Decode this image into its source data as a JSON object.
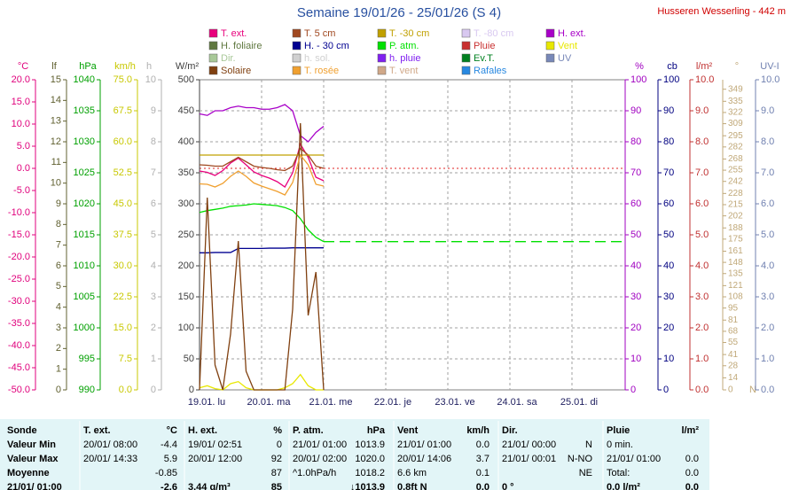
{
  "chart_data": {
    "type": "line",
    "title": "Semaine 19/01/26 - 25/01/26 (S 4)",
    "subtitle": "Husseren Wesserling - 442 m",
    "categories": [
      "19.01. lu",
      null,
      null,
      null,
      null,
      null,
      null,
      null,
      "20.01. ma",
      null,
      null,
      null,
      null,
      null,
      null,
      null,
      "21.01. me",
      null,
      null,
      null,
      null,
      null,
      null,
      null,
      "22.01. je",
      null,
      null,
      null,
      null,
      null,
      null,
      null,
      "23.01. ve",
      null,
      null,
      null,
      null,
      null,
      null,
      null,
      "24.01. sa",
      null,
      null,
      null,
      null,
      null,
      null,
      null,
      "25.01. di",
      null,
      null,
      null,
      null,
      null,
      null,
      null
    ],
    "axes": [
      {
        "label": "°C",
        "side": "left",
        "color": "#e0007c",
        "lim": [
          -50,
          20
        ],
        "zero_line": true,
        "ticks": [
          {
            "value": 20,
            "label": "20.0"
          },
          {
            "value": 15,
            "label": "15.0"
          },
          {
            "value": 10,
            "label": "10.0"
          },
          {
            "value": 5,
            "label": "5.0"
          },
          {
            "value": 0,
            "label": "0.0"
          },
          {
            "value": -5,
            "label": "-5.0"
          },
          {
            "value": -10,
            "label": "-10.0"
          },
          {
            "value": -15,
            "label": "-15.0"
          },
          {
            "value": -20,
            "label": "-20.0"
          },
          {
            "value": -25,
            "label": "-25.0"
          },
          {
            "value": -30,
            "label": "-30.0"
          },
          {
            "value": -35,
            "label": "-35.0"
          },
          {
            "value": -40,
            "label": "-40.0"
          },
          {
            "value": -45,
            "label": "-45.0"
          },
          {
            "value": -50,
            "label": "-50.0"
          }
        ]
      },
      {
        "label": "lf",
        "side": "left",
        "color": "#606030",
        "lim": [
          0,
          15
        ],
        "ticks": [
          15,
          14,
          13,
          12,
          11,
          10,
          9,
          8,
          7,
          6,
          5,
          4,
          3,
          2,
          1,
          0
        ]
      },
      {
        "label": "hPa",
        "side": "left",
        "color": "#00a000",
        "lim": [
          990,
          1040
        ],
        "ticks": [
          1040,
          1035,
          1030,
          1025,
          1020,
          1015,
          1010,
          1005,
          1000,
          995,
          990
        ]
      },
      {
        "label": "km/h",
        "side": "left",
        "color": "#c8c800",
        "lim": [
          0,
          75
        ],
        "ticks": [
          {
            "value": 75,
            "label": "75.0"
          },
          {
            "value": 67.5,
            "label": "67.5"
          },
          {
            "value": 60,
            "label": "60.0"
          },
          {
            "value": 52.5,
            "label": "52.5"
          },
          {
            "value": 45,
            "label": "45.0"
          },
          {
            "value": 37.5,
            "label": "37.5"
          },
          {
            "value": 30,
            "label": "30.0"
          },
          {
            "value": 22.5,
            "label": "22.5"
          },
          {
            "value": 15,
            "label": "15.0"
          },
          {
            "value": 7.5,
            "label": "7.5"
          },
          {
            "value": 0,
            "label": "0.0"
          }
        ]
      },
      {
        "label": "h",
        "side": "left",
        "color": "#b0b0b0",
        "lim": [
          0,
          10
        ],
        "ticks": [
          10,
          9,
          8,
          7,
          6,
          5,
          4,
          3,
          2,
          1,
          0
        ]
      },
      {
        "label": "W/m²",
        "side": "left",
        "color": "#404040",
        "lim": [
          0,
          500
        ],
        "grid": true,
        "ticks": [
          500,
          450,
          400,
          350,
          300,
          250,
          200,
          150,
          100,
          50,
          0
        ]
      },
      {
        "label": "%",
        "side": "right",
        "color": "#a000c0",
        "lim": [
          0,
          100
        ],
        "ticks": [
          100,
          90,
          80,
          70,
          60,
          50,
          40,
          30,
          20,
          10,
          0
        ]
      },
      {
        "label": "cb",
        "side": "right",
        "color": "#000080",
        "lim": [
          0,
          100
        ],
        "ticks": [
          100,
          90,
          80,
          70,
          60,
          50,
          40,
          30,
          20,
          10,
          0
        ]
      },
      {
        "label": "l/m²",
        "side": "right",
        "color": "#c03030",
        "lim": [
          0,
          10
        ],
        "ticks": [
          {
            "value": 10,
            "label": "10.0"
          },
          {
            "value": 9,
            "label": "9.0"
          },
          {
            "value": 8,
            "label": "8.0"
          },
          {
            "value": 7,
            "label": "7.0"
          },
          {
            "value": 6,
            "label": "6.0"
          },
          {
            "value": 5,
            "label": "5.0"
          },
          {
            "value": 4,
            "label": "4.0"
          },
          {
            "value": 3,
            "label": "3.0"
          },
          {
            "value": 2,
            "label": "2.0"
          },
          {
            "value": 1,
            "label": "1.0"
          },
          {
            "value": 0,
            "label": "0.0"
          }
        ]
      },
      {
        "label": "°",
        "side": "right",
        "color": "#c0a878",
        "lim": [
          0,
          360
        ],
        "zero_label": "N",
        "ticks": [
          349,
          335,
          322,
          309,
          295,
          282,
          268,
          255,
          242,
          228,
          215,
          202,
          188,
          175,
          161,
          148,
          135,
          121,
          108,
          95,
          81,
          68,
          55,
          41,
          28,
          14,
          0
        ]
      },
      {
        "label": "UV-I",
        "side": "right",
        "color": "#7080b0",
        "lim": [
          0,
          10
        ],
        "ticks": [
          {
            "value": 10,
            "label": "10.0"
          },
          {
            "value": 9,
            "label": "9.0"
          },
          {
            "value": 8,
            "label": "8.0"
          },
          {
            "value": 7,
            "label": "7.0"
          },
          {
            "value": 6,
            "label": "6.0"
          },
          {
            "value": 5,
            "label": "5.0"
          },
          {
            "value": 4,
            "label": "4.0"
          },
          {
            "value": 3,
            "label": "3.0"
          },
          {
            "value": 2,
            "label": "2.0"
          },
          {
            "value": 1,
            "label": "1.0"
          },
          {
            "value": 0,
            "label": "0.0"
          }
        ]
      }
    ],
    "series": [
      {
        "name": "T. ext.",
        "color": "#e8007c",
        "axis": 0,
        "values": [
          -0.6,
          -0.9,
          -1.6,
          -0.5,
          1.2,
          2.3,
          0.8,
          -0.8,
          -1.6,
          -2.2,
          -3.0,
          -4.2,
          -1.0,
          5.5,
          2.5,
          -2.0,
          -2.8,
          null,
          null,
          null,
          null,
          null,
          null,
          null,
          null,
          null,
          null,
          null,
          null,
          null,
          null,
          null,
          null,
          null,
          null,
          null,
          null,
          null,
          null,
          null,
          null,
          null,
          null,
          null,
          null,
          null,
          null,
          null,
          null,
          null,
          null,
          null,
          null,
          null,
          null,
          null
        ]
      },
      {
        "name": "T. 5 cm",
        "color": "#a04820",
        "axis": 0,
        "values": [
          0.8,
          0.7,
          0.5,
          0.5,
          1.5,
          2.5,
          1.5,
          0.5,
          0.2,
          0.0,
          -0.3,
          -0.5,
          0.5,
          4.5,
          3.0,
          0.5,
          0.0,
          null,
          null,
          null,
          null,
          null,
          null,
          null,
          null,
          null,
          null,
          null,
          null,
          null,
          null,
          null,
          null,
          null,
          null,
          null,
          null,
          null,
          null,
          null,
          null,
          null,
          null,
          null,
          null,
          null,
          null,
          null,
          null,
          null,
          null,
          null,
          null,
          null,
          null,
          null
        ]
      },
      {
        "name": "T. -30 cm",
        "color": "#c0a000",
        "axis": 0,
        "values": [
          3.0,
          3.0,
          3.0,
          3.0,
          3.0,
          3.0,
          3.0,
          3.0,
          3.0,
          3.0,
          3.0,
          3.0,
          3.0,
          3.0,
          3.0,
          3.0,
          3.0,
          null,
          null,
          null,
          null,
          null,
          null,
          null,
          null,
          null,
          null,
          null,
          null,
          null,
          null,
          null,
          null,
          null,
          null,
          null,
          null,
          null,
          null,
          null,
          null,
          null,
          null,
          null,
          null,
          null,
          null,
          null,
          null,
          null,
          null,
          null,
          null,
          null,
          null,
          null
        ]
      },
      {
        "name": "T. -80 cm",
        "color": "#d8c8f0"
      },
      {
        "name": "H. ext.",
        "color": "#a800c8",
        "axis": 6,
        "values": [
          89,
          88.5,
          90,
          90,
          91,
          91.5,
          91,
          91,
          90.5,
          90.5,
          91,
          92,
          90,
          82,
          80,
          83,
          85,
          null,
          null,
          null,
          null,
          null,
          null,
          null,
          null,
          null,
          null,
          null,
          null,
          null,
          null,
          null,
          null,
          null,
          null,
          null,
          null,
          null,
          null,
          null,
          null,
          null,
          null,
          null,
          null,
          null,
          null,
          null,
          null,
          null,
          null,
          null,
          null,
          null,
          null,
          null
        ]
      },
      {
        "name": "H. foliaire",
        "color": "#607840"
      },
      {
        "name": "H. - 30 cm",
        "color": "#000090",
        "axis": 7,
        "values": [
          44.2,
          44.2,
          44.3,
          44.3,
          44.3,
          45.6,
          45.6,
          45.6,
          45.6,
          45.7,
          45.7,
          45.7,
          45.8,
          45.8,
          45.8,
          45.8,
          45.8,
          null,
          null,
          null,
          null,
          null,
          null,
          null,
          null,
          null,
          null,
          null,
          null,
          null,
          null,
          null,
          null,
          null,
          null,
          null,
          null,
          null,
          null,
          null,
          null,
          null,
          null,
          null,
          null,
          null,
          null,
          null,
          null,
          null,
          null,
          null,
          null,
          null,
          null,
          null
        ]
      },
      {
        "name": "P. atm.",
        "color": "#00e000",
        "axis": 2,
        "extend": true,
        "values": [
          1018.6,
          1018.9,
          1019.1,
          1019.3,
          1019.6,
          1019.7,
          1019.8,
          1020.0,
          1019.9,
          1019.8,
          1019.7,
          1019.4,
          1018.9,
          1017.6,
          1015.8,
          1014.6,
          1013.9,
          null,
          null,
          null,
          null,
          null,
          null,
          null,
          null,
          null,
          null,
          null,
          null,
          null,
          null,
          null,
          null,
          null,
          null,
          null,
          null,
          null,
          null,
          null,
          null,
          null,
          null,
          null,
          null,
          null,
          null,
          null,
          null,
          null,
          null,
          null,
          null,
          null,
          null,
          null
        ]
      },
      {
        "name": "Pluie",
        "color": "#c83030"
      },
      {
        "name": "Vent",
        "color": "#e8e800",
        "axis": 3,
        "values": [
          0.5,
          1.0,
          0.3,
          0,
          1.5,
          2.0,
          0.5,
          0,
          0,
          0,
          0,
          0.5,
          1.5,
          3.7,
          1.0,
          0,
          0,
          null,
          null,
          null,
          null,
          null,
          null,
          null,
          null,
          null,
          null,
          null,
          null,
          null,
          null,
          null,
          null,
          null,
          null,
          null,
          null,
          null,
          null,
          null,
          null,
          null,
          null,
          null,
          null,
          null,
          null,
          null,
          null,
          null,
          null,
          null,
          null,
          null,
          null,
          null
        ]
      },
      {
        "name": "Dir.",
        "color": "#a8c898"
      },
      {
        "name": "h. sol.",
        "color": "#d0d0d0"
      },
      {
        "name": "h. pluie",
        "color": "#8020f0"
      },
      {
        "name": "Ev.T.",
        "color": "#008020"
      },
      {
        "name": "UV",
        "color": "#7888b8"
      },
      {
        "name": "Solaire",
        "color": "#804010",
        "axis": 5,
        "values": [
          0,
          310,
          40,
          0,
          90,
          240,
          30,
          0,
          0,
          0,
          0,
          0,
          130,
          430,
          120,
          190,
          0,
          null,
          null,
          null,
          null,
          null,
          null,
          null,
          null,
          null,
          null,
          null,
          null,
          null,
          null,
          null,
          null,
          null,
          null,
          null,
          null,
          null,
          null,
          null,
          null,
          null,
          null,
          null,
          null,
          null,
          null,
          null,
          null,
          null,
          null,
          null,
          null,
          null,
          null,
          null
        ]
      },
      {
        "name": "T. rosée",
        "color": "#f0a030",
        "axis": 0,
        "values": [
          -3.5,
          -3.6,
          -4.2,
          -3.4,
          -1.8,
          -0.6,
          -1.8,
          -3.3,
          -4.0,
          -4.6,
          -5.2,
          -6.0,
          -3.2,
          3.0,
          0.8,
          -3.6,
          -4.0,
          null,
          null,
          null,
          null,
          null,
          null,
          null,
          null,
          null,
          null,
          null,
          null,
          null,
          null,
          null,
          null,
          null,
          null,
          null,
          null,
          null,
          null,
          null,
          null,
          null,
          null,
          null,
          null,
          null,
          null,
          null,
          null,
          null,
          null,
          null,
          null,
          null,
          null,
          null
        ]
      },
      {
        "name": "T. vent",
        "color": "#d0a888"
      },
      {
        "name": "Rafales",
        "color": "#2888e0"
      }
    ]
  },
  "table": {
    "header": [
      "Sonde",
      "T. ext.",
      "°C",
      "H. ext.",
      "%",
      "P. atm.",
      "hPa",
      "Vent",
      "km/h",
      "Dir.",
      null,
      "Pluie",
      "l/m²"
    ],
    "rows": [
      [
        "Valeur Min",
        "20/01/ 08:00",
        "-4.4",
        "19/01/ 02:51",
        "0",
        "21/01/ 01:00",
        "1013.9",
        "21/01/ 01:00",
        "0.0",
        "21/01/ 00:00",
        "N",
        "0 min.",
        null
      ],
      [
        "Valeur Max",
        "20/01/ 14:33",
        "5.9",
        "20/01/ 12:00",
        "92",
        "20/01/ 02:00",
        "1020.0",
        "20/01/ 14:06",
        "3.7",
        "21/01/ 00:01",
        "N-NO",
        "21/01/ 01:00",
        "0.0"
      ],
      [
        "Moyenne",
        null,
        "-0.85",
        null,
        "87",
        "^1.0hPa/h",
        "1018.2",
        "6.6 km",
        "0.1",
        null,
        "NE",
        "Total:",
        "0.0"
      ],
      [
        "21/01/ 01:00",
        null,
        "-2.6",
        "3.44 g/m³",
        "85",
        null,
        "↓1013.9",
        "0.8ft N",
        "0.0",
        "0 °",
        null,
        "0.0 l/m²",
        "0.0"
      ]
    ]
  }
}
